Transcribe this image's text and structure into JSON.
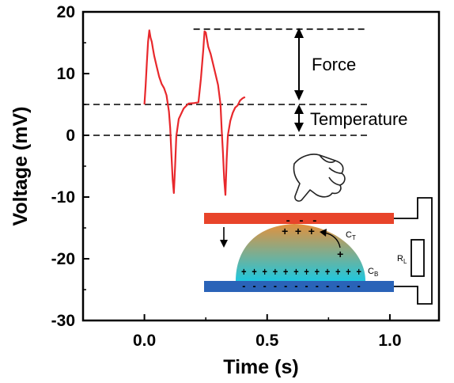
{
  "chart_data": {
    "type": "line",
    "xlabel": "Time (s)",
    "ylabel": "Voltage (mV)",
    "xlim": [
      -0.25,
      1.2
    ],
    "ylim": [
      -30,
      20
    ],
    "x_ticks": [
      0.0,
      0.5,
      1.0
    ],
    "x_tick_labels": [
      "0.0",
      "0.5",
      "1.0"
    ],
    "y_ticks": [
      20,
      10,
      0,
      -10,
      -20,
      -30
    ],
    "y_tick_labels": [
      "20",
      "10",
      "0",
      "-10",
      "-20",
      "-30"
    ],
    "series": [
      {
        "color": "#e8282c",
        "x": [
          0.0,
          0.005,
          0.01,
          0.015,
          0.02,
          0.025,
          0.03,
          0.035,
          0.04,
          0.05,
          0.06,
          0.07,
          0.08,
          0.09,
          0.1,
          0.105,
          0.11,
          0.115,
          0.12,
          0.125,
          0.13,
          0.14,
          0.15,
          0.16,
          0.18,
          0.2,
          0.22,
          0.23,
          0.24,
          0.245,
          0.25,
          0.255,
          0.26,
          0.27,
          0.28,
          0.29,
          0.3,
          0.31,
          0.315,
          0.32,
          0.325,
          0.33,
          0.335,
          0.34,
          0.35,
          0.36,
          0.37,
          0.38,
          0.39,
          0.4,
          0.41
        ],
        "y": [
          5,
          8,
          12,
          15,
          17,
          16,
          15,
          14,
          13,
          11,
          9.5,
          8.5,
          7.5,
          6.5,
          4,
          1,
          -3,
          -7,
          -9.5,
          -5,
          0,
          2.5,
          3.5,
          4.5,
          5,
          5.2,
          5.5,
          9,
          14,
          17,
          16.5,
          15.5,
          14.5,
          13,
          11.5,
          10,
          8,
          5,
          1,
          -3,
          -7,
          -9.5,
          -4,
          0,
          2.5,
          3.5,
          4.5,
          5,
          5.5,
          6,
          6.2
        ]
      }
    ],
    "reference_lines": [
      {
        "y": 17.2,
        "x_start": 0.2,
        "x_end": 0.91,
        "style": "dashed"
      },
      {
        "y": 5,
        "x_start": -0.25,
        "x_end": 0.91,
        "style": "dashed"
      },
      {
        "y": 0,
        "x_start": -0.25,
        "x_end": 0.91,
        "style": "dashed"
      }
    ],
    "annotations": {
      "force": "Force",
      "temperature": "Temperature"
    }
  },
  "inset": {
    "labels": {
      "ct": "C",
      "ct_sub": "T",
      "cb": "C",
      "cb_sub": "B",
      "rl": "R",
      "rl_sub": "L"
    },
    "signs": {
      "top_minus": "- - -",
      "top_plus": "+ + +",
      "side_plus": "+",
      "bottom_plus": "+ + + + + + + + + + + +",
      "bottom_minus": "- - - - - - - - - - - -"
    },
    "colors": {
      "top_electrode": "#e8442a",
      "bottom_electrode": "#2a63b8",
      "droplet_top": "#e2913d",
      "droplet_bottom": "#1fc7de"
    },
    "icons": [
      "pointing-hand-icon",
      "down-arrow-icon"
    ]
  }
}
